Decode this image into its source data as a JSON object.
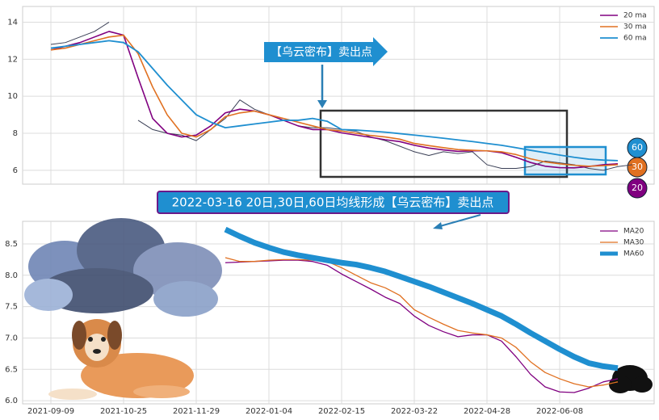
{
  "chart_data": [
    {
      "type": "line",
      "legend": "upper right",
      "grid": true,
      "categories": [
        null,
        null,
        null,
        null,
        null,
        null,
        null,
        null,
        null,
        null,
        null,
        null,
        null,
        null,
        null,
        null,
        null,
        null,
        null,
        null,
        null,
        null,
        null,
        null,
        null,
        null,
        null,
        null,
        null,
        null,
        null,
        null,
        null,
        null,
        null,
        null,
        null,
        null,
        null,
        null,
        null,
        null,
        null,
        null
      ],
      "ylim": [
        5.25,
        14.85
      ],
      "yticks": [
        6,
        8,
        10,
        12,
        14
      ],
      "annotations": [
        "【乌云密布】卖出点",
        "2022-03-16 20日,30日,60日均线形成【乌云密布】卖出点"
      ],
      "badges": [
        "60",
        "30",
        "20"
      ],
      "series": [
        {
          "name": null,
          "color": "#3a3f55",
          "width": 1,
          "values": [
            null,
            null,
            12.8,
            12.9,
            13.2,
            13.5,
            14.0,
            null,
            8.7,
            8.2,
            8.0,
            7.9,
            7.6,
            8.2,
            8.8,
            9.8,
            9.3,
            9.0,
            8.7,
            8.4,
            8.3,
            8.3,
            8.2,
            8.1,
            7.8,
            7.6,
            7.3,
            7.0,
            6.8,
            7.0,
            6.9,
            7.0,
            6.3,
            6.1,
            6.1,
            6.2,
            6.5,
            6.4,
            6.3,
            6.1,
            6.0,
            6.2,
            6.3,
            null
          ]
        },
        {
          "name": "20 ma",
          "color": "#800080",
          "width": 1.6,
          "values": [
            null,
            null,
            12.5,
            12.7,
            12.9,
            13.2,
            13.5,
            13.3,
            11.0,
            8.8,
            8.0,
            7.8,
            7.9,
            8.4,
            9.1,
            9.3,
            9.2,
            9.0,
            8.7,
            8.4,
            8.2,
            8.2,
            8.02,
            7.9,
            7.78,
            7.65,
            7.55,
            7.35,
            7.2,
            7.1,
            7.02,
            7.05,
            7.05,
            6.95,
            6.7,
            6.42,
            6.22,
            6.14,
            6.13,
            6.2,
            6.3,
            6.35,
            null,
            null
          ]
        },
        {
          "name": "30 ma",
          "color": "#e07020",
          "width": 1.6,
          "values": [
            null,
            null,
            12.5,
            12.6,
            12.8,
            13.0,
            13.2,
            13.3,
            12.3,
            10.5,
            9.0,
            8.0,
            7.8,
            8.2,
            8.9,
            9.1,
            9.2,
            9.0,
            8.8,
            8.6,
            8.4,
            8.2,
            8.12,
            8.0,
            7.88,
            7.8,
            7.68,
            7.45,
            7.33,
            7.22,
            7.12,
            7.08,
            7.05,
            7.0,
            6.85,
            6.62,
            6.45,
            6.35,
            6.27,
            6.22,
            6.25,
            6.3,
            null,
            null
          ]
        },
        {
          "name": "60 ma",
          "color": "#1f8fd0",
          "width": 1.8,
          "values": [
            null,
            null,
            12.6,
            12.7,
            12.8,
            12.9,
            13.0,
            12.9,
            12.4,
            11.5,
            10.6,
            9.8,
            9.0,
            8.6,
            8.3,
            8.4,
            8.5,
            8.6,
            8.7,
            8.7,
            8.8,
            8.65,
            8.2,
            8.17,
            8.12,
            8.06,
            7.98,
            7.9,
            7.82,
            7.73,
            7.64,
            7.55,
            7.45,
            7.35,
            7.22,
            7.08,
            6.95,
            6.82,
            6.7,
            6.6,
            6.55,
            6.52,
            null,
            null
          ]
        }
      ]
    },
    {
      "type": "line",
      "legend": "upper right",
      "grid": true,
      "categories": [
        null,
        null,
        "2021-09-09",
        null,
        null,
        null,
        null,
        "2021-10-25",
        null,
        null,
        null,
        null,
        "2021-11-29",
        null,
        null,
        null,
        null,
        "2022-01-04",
        null,
        null,
        null,
        null,
        "2022-02-15",
        null,
        null,
        null,
        null,
        "2022-03-22",
        null,
        null,
        null,
        null,
        "2022-04-28",
        null,
        null,
        null,
        null,
        "2022-06-08",
        null,
        null,
        null,
        null,
        null,
        null
      ],
      "ylim": [
        5.95,
        8.86
      ],
      "yticks": [
        {
          "value": 6,
          "label": "6.0"
        },
        6.5,
        {
          "value": 7,
          "label": "7.0"
        },
        7.5,
        {
          "value": 8,
          "label": "8.0"
        },
        8.5
      ],
      "series": [
        {
          "name": "MA20",
          "color": "#800080",
          "width": 1.3,
          "values": [
            null,
            null,
            null,
            null,
            null,
            null,
            null,
            null,
            null,
            null,
            null,
            null,
            null,
            null,
            8.2,
            8.21,
            8.22,
            8.23,
            8.24,
            8.24,
            8.22,
            8.16,
            8.02,
            7.9,
            7.78,
            7.65,
            7.55,
            7.35,
            7.2,
            7.1,
            7.02,
            7.05,
            7.05,
            6.95,
            6.7,
            6.42,
            6.22,
            6.14,
            6.13,
            6.2,
            6.3,
            6.35,
            null,
            null
          ]
        },
        {
          "name": "MA30",
          "color": "#e07020",
          "width": 1.3,
          "values": [
            null,
            null,
            null,
            null,
            null,
            null,
            null,
            null,
            null,
            null,
            null,
            null,
            null,
            null,
            8.28,
            8.22,
            8.22,
            8.24,
            8.25,
            8.25,
            8.24,
            8.22,
            8.12,
            8.0,
            7.88,
            7.8,
            7.68,
            7.45,
            7.33,
            7.22,
            7.12,
            7.08,
            7.05,
            7.0,
            6.85,
            6.62,
            6.45,
            6.35,
            6.27,
            6.22,
            6.25,
            6.3,
            null,
            null
          ]
        },
        {
          "name": "MA60",
          "color": "#1f8fd0",
          "width": 7,
          "values": [
            null,
            null,
            null,
            null,
            null,
            null,
            null,
            null,
            null,
            null,
            null,
            null,
            null,
            null,
            8.73,
            8.62,
            8.52,
            8.44,
            8.37,
            8.32,
            8.28,
            8.24,
            8.2,
            8.17,
            8.12,
            8.06,
            7.98,
            7.9,
            7.82,
            7.73,
            7.64,
            7.55,
            7.45,
            7.35,
            7.22,
            7.08,
            6.95,
            6.82,
            6.7,
            6.6,
            6.55,
            6.52,
            null,
            null
          ]
        }
      ]
    }
  ]
}
